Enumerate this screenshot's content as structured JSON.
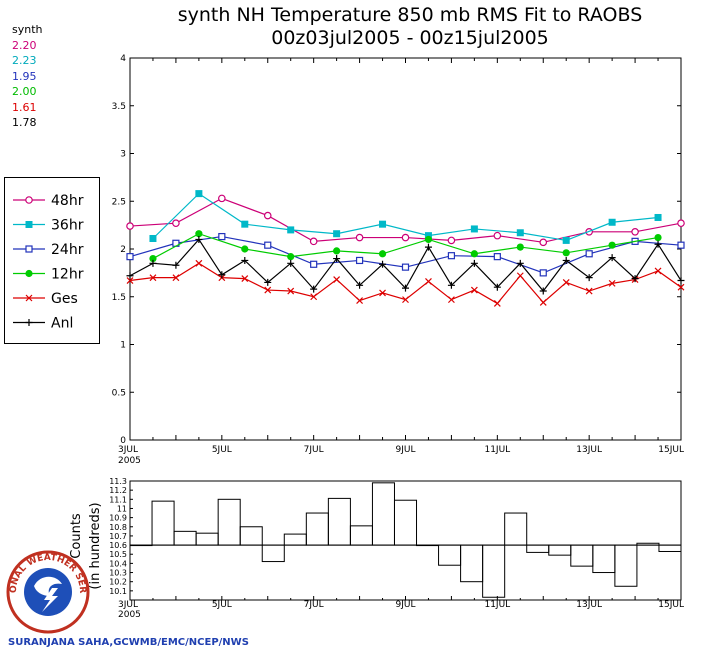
{
  "title_line1": "synth NH Temperature 850 mb RMS Fit to RAOBS",
  "title_line2": "00z03jul2005 - 00z15jul2005",
  "stats": {
    "label": "synth",
    "values": [
      {
        "text": "2.20",
        "color": "#cc0077"
      },
      {
        "text": "2.23",
        "color": "#00aabb"
      },
      {
        "text": "1.95",
        "color": "#2233bb"
      },
      {
        "text": "2.00",
        "color": "#00bb00"
      },
      {
        "text": "1.61",
        "color": "#dd0000"
      },
      {
        "text": "1.78",
        "color": "#000000"
      }
    ]
  },
  "credit": "SURANJANA SAHA,GCWMB/EMC/NCEP/NWS",
  "logo_text": "NATIONAL WEATHER SERVICE",
  "chart_data": [
    {
      "type": "line",
      "xlim": [
        0,
        24
      ],
      "ylim": [
        0,
        4
      ],
      "yticks": [
        0,
        0.5,
        1,
        1.5,
        2,
        2.5,
        3,
        3.5,
        4
      ],
      "ytick_labels": [
        "0",
        "0.5",
        "1",
        "1.5",
        "2",
        "2.5",
        "3",
        "3.5",
        "4"
      ],
      "xticks": [
        0,
        4,
        8,
        12,
        16,
        20,
        24
      ],
      "xtick_labels": [
        "3JUL",
        "5JUL",
        "7JUL",
        "9JUL",
        "11JUL",
        "13JUL",
        "15JUL"
      ],
      "xtick_year": "2005",
      "series": [
        {
          "name": "48hr",
          "color": "#cc0077",
          "marker": "open-circle",
          "x": [
            0,
            2,
            4,
            6,
            8,
            10,
            12,
            14,
            16,
            18,
            20,
            22,
            24
          ],
          "y": [
            2.24,
            2.27,
            2.53,
            2.35,
            2.08,
            2.12,
            2.12,
            2.09,
            2.14,
            2.07,
            2.18,
            2.18,
            2.27
          ]
        },
        {
          "name": "36hr",
          "color": "#00b8c8",
          "marker": "filled-square",
          "x": [
            1,
            3,
            5,
            7,
            9,
            11,
            13,
            15,
            17,
            19,
            21,
            23
          ],
          "y": [
            2.11,
            2.58,
            2.26,
            2.2,
            2.16,
            2.26,
            2.14,
            2.21,
            2.17,
            2.09,
            2.28,
            2.33
          ]
        },
        {
          "name": "24hr",
          "color": "#2233bb",
          "marker": "open-square",
          "x": [
            0,
            2,
            4,
            6,
            8,
            10,
            12,
            14,
            16,
            18,
            20,
            22,
            24
          ],
          "y": [
            1.92,
            2.06,
            2.13,
            2.04,
            1.84,
            1.88,
            1.81,
            1.93,
            1.92,
            1.75,
            1.95,
            2.08,
            2.04
          ]
        },
        {
          "name": "12hr",
          "color": "#00cc00",
          "marker": "filled-circle",
          "x": [
            1,
            3,
            5,
            7,
            9,
            11,
            13,
            15,
            17,
            19,
            21,
            23
          ],
          "y": [
            1.9,
            2.16,
            2.0,
            1.92,
            1.98,
            1.95,
            2.1,
            1.95,
            2.02,
            1.96,
            2.04,
            2.12
          ]
        },
        {
          "name": "Ges",
          "color": "#dd0000",
          "marker": "x",
          "x": [
            0,
            1,
            2,
            3,
            4,
            5,
            6,
            7,
            8,
            9,
            10,
            11,
            12,
            13,
            14,
            15,
            16,
            17,
            18,
            19,
            20,
            21,
            22,
            23,
            24
          ],
          "y": [
            1.67,
            1.7,
            1.7,
            1.85,
            1.7,
            1.69,
            1.57,
            1.56,
            1.5,
            1.68,
            1.46,
            1.54,
            1.47,
            1.66,
            1.47,
            1.57,
            1.43,
            1.72,
            1.44,
            1.65,
            1.56,
            1.64,
            1.68,
            1.77,
            1.6
          ]
        },
        {
          "name": "Anl",
          "color": "#000000",
          "marker": "plus",
          "x": [
            0,
            1,
            2,
            3,
            4,
            5,
            6,
            7,
            8,
            9,
            10,
            11,
            12,
            13,
            14,
            15,
            16,
            17,
            18,
            19,
            20,
            21,
            22,
            23,
            24
          ],
          "y": [
            1.72,
            1.85,
            1.83,
            2.1,
            1.73,
            1.88,
            1.65,
            1.85,
            1.58,
            1.9,
            1.62,
            1.84,
            1.59,
            2.02,
            1.62,
            1.85,
            1.6,
            1.85,
            1.56,
            1.88,
            1.7,
            1.91,
            1.69,
            2.05,
            1.67
          ]
        }
      ]
    },
    {
      "type": "bar",
      "xlim": [
        0,
        24
      ],
      "ylabel": "Counts\n(in hundreds)",
      "ylabel_visible": "Counts",
      "ylabel2": "(in hundreds)",
      "ylim": [
        10,
        11.3
      ],
      "baseline": 10.6,
      "yticks": [
        10.1,
        10.2,
        10.3,
        10.4,
        10.5,
        10.6,
        10.7,
        10.8,
        10.9,
        11,
        11.1,
        11.2,
        11.3
      ],
      "ytick_labels": [
        "10.1",
        "10.2",
        "10.3",
        "10.4",
        "10.5",
        "10.6",
        "10.7",
        "10.8",
        "10.9",
        "11",
        "11.1",
        "11.2",
        "11.3"
      ],
      "xticks": [
        0,
        4,
        8,
        12,
        16,
        20,
        24
      ],
      "xtick_labels": [
        "3JUL",
        "5JUL",
        "7JUL",
        "9JUL",
        "11JUL",
        "13JUL",
        "15JUL"
      ],
      "xtick_year": "2005",
      "values": [
        10.6,
        11.08,
        10.75,
        10.73,
        11.1,
        10.8,
        10.42,
        10.72,
        10.95,
        11.11,
        10.81,
        11.28,
        11.09,
        10.6,
        10.38,
        10.2,
        10.03,
        10.95,
        10.52,
        10.49,
        10.37,
        10.3,
        10.15,
        10.62,
        10.53
      ]
    }
  ]
}
